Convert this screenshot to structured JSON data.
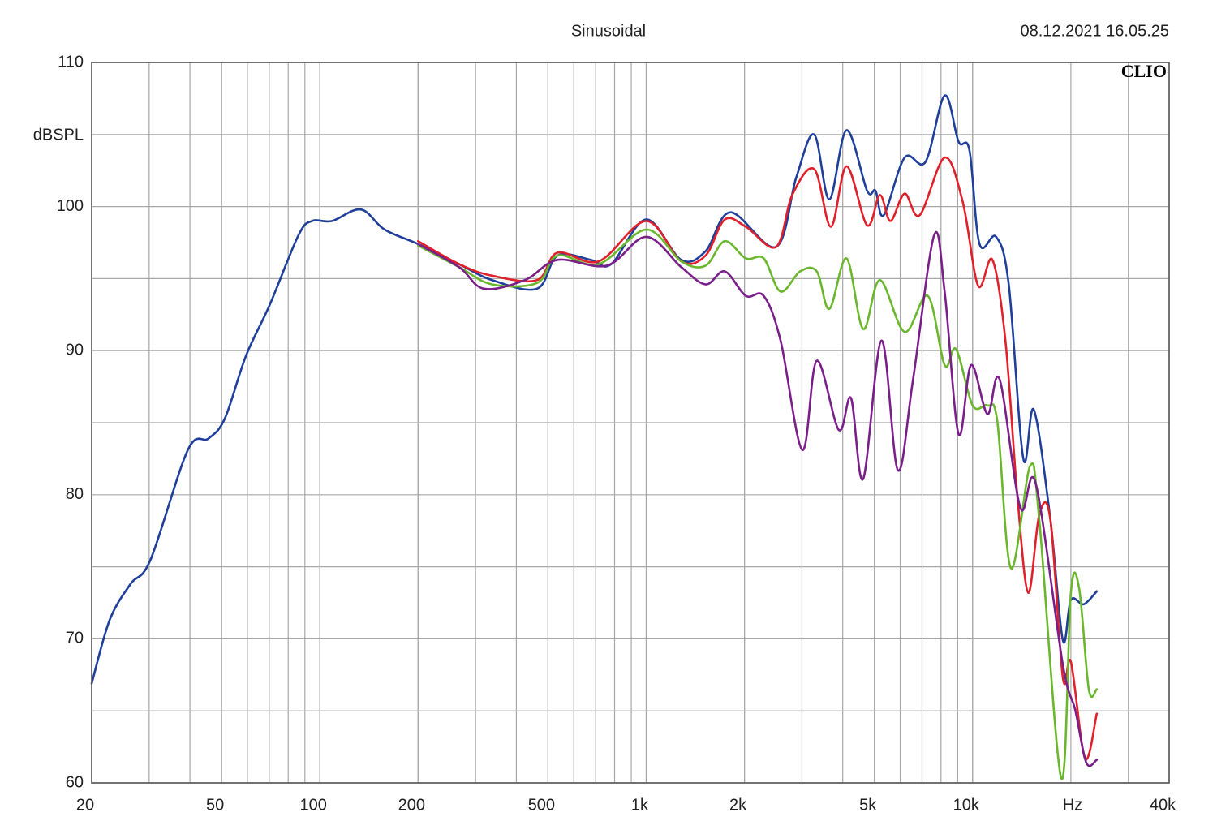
{
  "chart_data": {
    "type": "line",
    "title": "Sinusoidal",
    "timestamp": "08.12.2021 16.05.25",
    "brand": "CLIO",
    "y_label": "dBSPL",
    "x_label": "Hz",
    "xscale": "log",
    "grid": true,
    "xlim": [
      20,
      40000
    ],
    "ylim": [
      60,
      110
    ],
    "xticks": [
      20,
      50,
      100,
      200,
      500,
      {
        "value": 1000,
        "label": "1k"
      },
      {
        "value": 2000,
        "label": "2k"
      },
      {
        "value": 5000,
        "label": "5k"
      },
      {
        "value": 10000,
        "label": "10k"
      },
      {
        "value": 40000,
        "label": "40k"
      }
    ],
    "yticks": [
      60,
      70,
      80,
      90,
      100,
      110
    ],
    "series": [
      {
        "color": "#1f3f9a",
        "x": [
          20,
          22.7,
          26.3,
          30.3,
          39.4,
          45.6,
          51.2,
          59.3,
          70.3,
          86,
          94.6,
          109,
          133.5,
          158,
          200,
          267,
          337,
          463,
          535,
          676,
          781,
          1000,
          1280,
          1520,
          1810,
          2500,
          2880,
          3270,
          3640,
          4110,
          4750,
          5040,
          5340,
          6190,
          7170,
          8210,
          9060,
          9780,
          10500,
          11800,
          12900,
          14300,
          15400,
          17300,
          18900,
          20000,
          21900,
          24000
        ],
        "values": [
          66.9,
          71.3,
          73.8,
          75.5,
          83.1,
          83.9,
          85.3,
          89.6,
          93.2,
          98.0,
          99.0,
          99.0,
          99.8,
          98.4,
          97.4,
          96.0,
          94.9,
          94.3,
          96.6,
          96.3,
          96.0,
          99.1,
          96.3,
          96.9,
          99.6,
          97.2,
          102.0,
          105.0,
          100.5,
          105.3,
          101.1,
          101.1,
          99.4,
          103.4,
          103.1,
          107.7,
          104.5,
          103.9,
          97.4,
          97.9,
          94.6,
          82.5,
          85.9,
          78.3,
          69.9,
          72.7,
          72.4,
          73.3
        ]
      },
      {
        "color": "#e0202a",
        "x": [
          200,
          267,
          337,
          463,
          535,
          716,
          1000,
          1280,
          1520,
          1740,
          2020,
          2500,
          2800,
          3270,
          3680,
          4110,
          4750,
          5200,
          5600,
          6190,
          6880,
          8210,
          9330,
          10400,
          11500,
          12600,
          13700,
          14800,
          16000,
          17300,
          18900,
          20000,
          22100,
          24000
        ],
        "values": [
          97.6,
          96.0,
          95.2,
          94.9,
          96.8,
          96.2,
          99.0,
          96.2,
          96.6,
          99.1,
          98.6,
          97.2,
          100.8,
          102.6,
          98.6,
          102.8,
          98.7,
          100.8,
          99.0,
          100.9,
          99.4,
          103.4,
          100.3,
          94.5,
          96.3,
          90.7,
          80.0,
          73.2,
          78.6,
          78.3,
          67.3,
          68.4,
          61.7,
          64.8
        ]
      },
      {
        "color": "#6ab72e",
        "x": [
          200,
          267,
          337,
          463,
          535,
          716,
          1000,
          1280,
          1520,
          1740,
          2020,
          2290,
          2580,
          2960,
          3330,
          3640,
          4110,
          4620,
          5200,
          6190,
          7290,
          8210,
          8900,
          10000,
          11100,
          11900,
          13100,
          15000,
          16000,
          18700,
          20000,
          21200,
          22700,
          24000
        ],
        "values": [
          97.3,
          95.8,
          94.6,
          94.7,
          96.6,
          96.0,
          98.4,
          96.2,
          95.9,
          97.6,
          96.4,
          96.4,
          94.1,
          95.5,
          95.5,
          92.9,
          96.4,
          91.5,
          94.9,
          91.3,
          93.8,
          89.0,
          90.1,
          86.2,
          86.2,
          85.1,
          74.9,
          82.0,
          78.3,
          60.3,
          73.2,
          73.5,
          66.5,
          66.5
        ]
      },
      {
        "color": "#7a1f8a",
        "x": [
          200,
          267,
          318,
          425,
          535,
          758,
          1000,
          1280,
          1520,
          1740,
          2020,
          2290,
          2580,
          3010,
          3330,
          3890,
          4240,
          4620,
          5260,
          5900,
          6560,
          7620,
          8210,
          9060,
          9890,
          11100,
          12100,
          14000,
          15600,
          18900,
          20600,
          22300,
          24000
        ],
        "values": [
          97.4,
          95.8,
          94.3,
          94.9,
          96.3,
          95.9,
          97.9,
          95.8,
          94.6,
          95.5,
          93.8,
          93.8,
          90.7,
          83.1,
          89.3,
          84.5,
          86.7,
          81.1,
          90.7,
          81.7,
          87.9,
          98.0,
          94.1,
          84.2,
          89.0,
          85.6,
          88.0,
          79.1,
          80.8,
          68.2,
          65.1,
          61.4,
          61.6
        ]
      }
    ]
  }
}
